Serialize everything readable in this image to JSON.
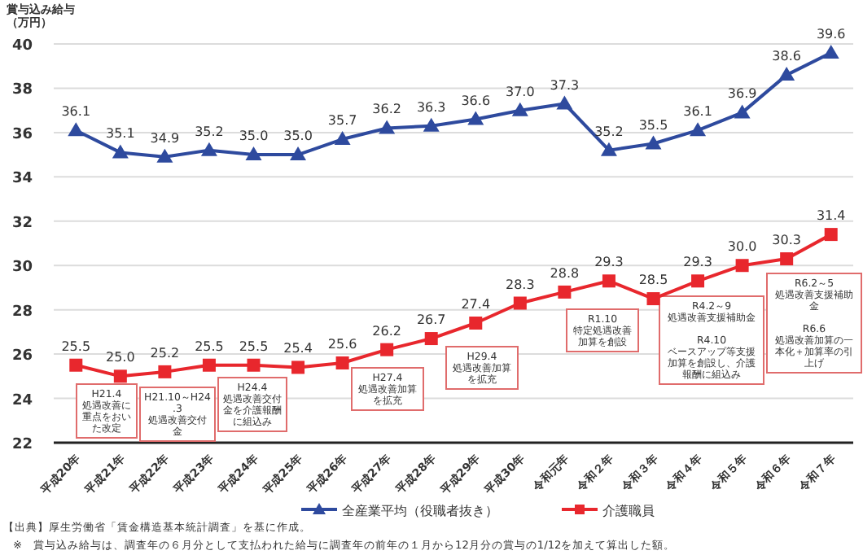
{
  "chart_data": {
    "type": "line",
    "ylabel": "賞与込み給与（万円）",
    "categories": [
      "平成20年",
      "平成21年",
      "平成22年",
      "平成23年",
      "平成24年",
      "平成25年",
      "平成26年",
      "平成27年",
      "平成28年",
      "平成29年",
      "平成30年",
      "令和元年",
      "令和２年",
      "令和３年",
      "令和４年",
      "令和５年",
      "令和６年",
      "令和７年"
    ],
    "series": [
      {
        "name": "全産業平均（役職者抜き）",
        "color": "#2e4a9e",
        "marker": "triangle",
        "values": [
          36.1,
          35.1,
          34.9,
          35.2,
          35.0,
          35.0,
          35.7,
          36.2,
          36.3,
          36.6,
          37.0,
          37.3,
          35.2,
          35.5,
          36.1,
          36.9,
          38.6,
          39.6
        ],
        "value_labels": [
          "36.1",
          "35.1",
          "34.9",
          "35.2",
          "35.0",
          "35.0",
          "35.7",
          "36.2",
          "36.3",
          "36.6",
          "37.0",
          "37.3",
          "35.2",
          "35.5",
          "36.1",
          "36.9",
          "38.6",
          "39.6"
        ]
      },
      {
        "name": "介護職員",
        "color": "#e8272d",
        "marker": "square",
        "values": [
          25.5,
          25.0,
          25.2,
          25.5,
          25.5,
          25.4,
          25.6,
          26.2,
          26.7,
          27.4,
          28.3,
          28.8,
          29.3,
          28.5,
          29.3,
          30.0,
          30.3,
          31.4
        ],
        "value_labels": [
          "25.5",
          "25.0",
          "25.2",
          "25.5",
          "25.5",
          "25.4",
          "25.6",
          "26.2",
          "26.7",
          "27.4",
          "28.3",
          "28.8",
          "29.3",
          "28.5",
          "29.3",
          "30.0",
          "30.3",
          "31.4"
        ]
      }
    ],
    "ylim": [
      22,
      40
    ],
    "yticks": [
      22,
      24,
      26,
      28,
      30,
      32,
      34,
      36,
      38,
      40
    ],
    "grid": "y",
    "legend": "bottom",
    "annotations": [
      "H21.4\n処遇改善に重点をおいた改定",
      "H21.10～H24.3\n処遇改善交付金",
      "H24.4\n処遇改善交付金を介護報酬に組込み",
      "H27.4\n処遇改善加算を拡充",
      "H29.4\n処遇改善加算を拡充",
      "R1.10\n特定処遇改善加算を創設",
      "R4.2～9\n処遇改善支援補助金\n\nR4.10\nベースアップ等支援加算を創設し、介護報酬に組込み",
      "R6.2～5\n処遇改善支援補助金\n\nR6.6\n処遇改善加算の一本化＋加算率の引上げ",
      "【出典】厚生労働省「賃金構造基本統計調査」を基に作成。",
      "※　賞与込み給与は、調査年の６月分として支払われた給与に調査年の前年の１月から12月分の賞与の1/12を加えて算出した額。"
    ]
  }
}
